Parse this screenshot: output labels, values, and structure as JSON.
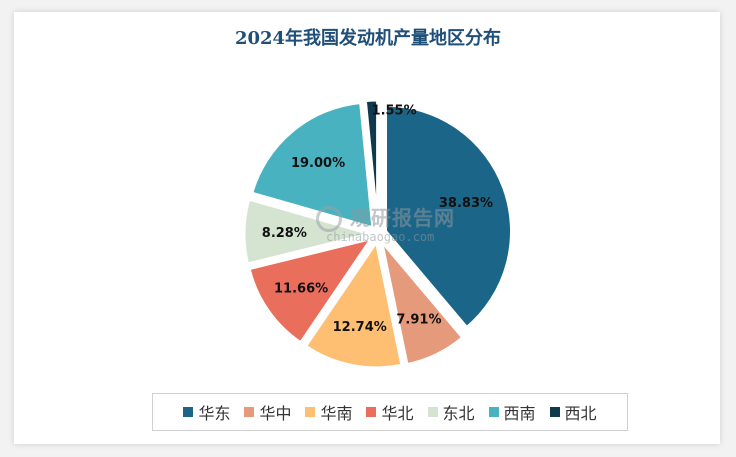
{
  "chart_data": {
    "type": "pie",
    "title": "2024年我国发动机产量地区分布",
    "categories": [
      "华东",
      "华中",
      "华南",
      "华北",
      "东北",
      "西南",
      "西北"
    ],
    "values": [
      38.83,
      7.91,
      12.74,
      11.66,
      8.28,
      19.0,
      1.55
    ],
    "value_labels": [
      "38.83%",
      "7.91%",
      "12.74%",
      "11.66%",
      "8.28%",
      "19.00%",
      "1.55%"
    ],
    "colors": [
      "#1b6688",
      "#e59a7c",
      "#ffbf73",
      "#e96e5b",
      "#d5e3d1",
      "#48b2c0",
      "#0f3a4d"
    ],
    "legend_position": "bottom"
  },
  "watermark": {
    "text": "观研报告网",
    "url": "chinabaogao.com"
  }
}
